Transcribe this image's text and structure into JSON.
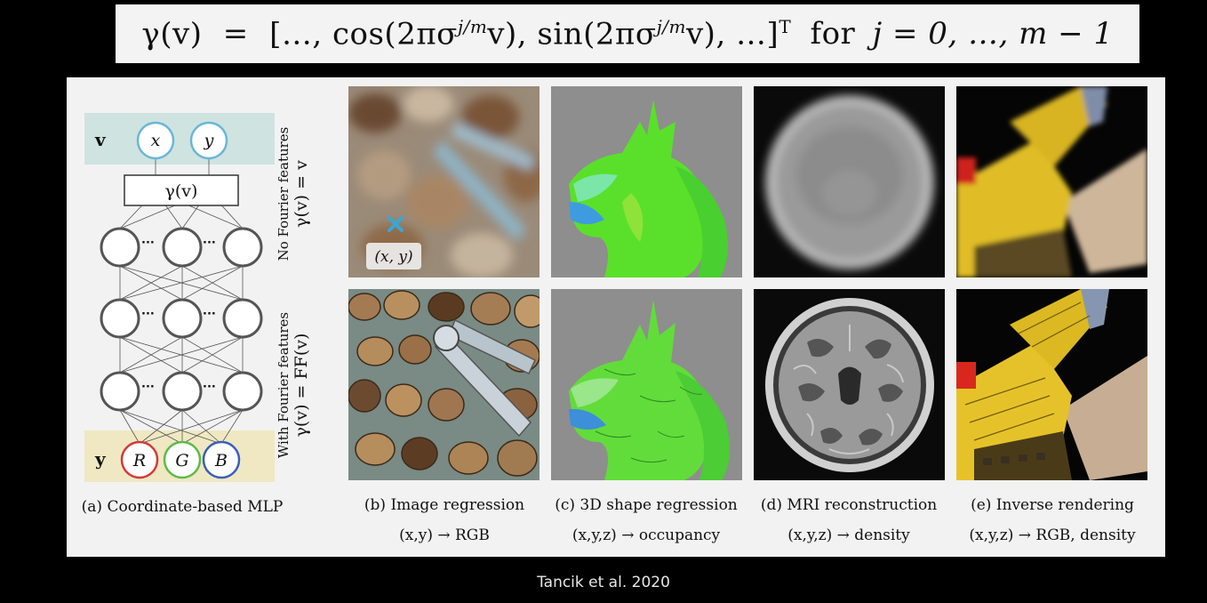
{
  "formula": {
    "gamma_v": "γ(v)",
    "equals": "=",
    "body": "[…, cos(2πσ^{j/m}v), sin(2πσ^{j/m}v), …]",
    "left_part": "[…, cos(2πσ",
    "exp1": "j/m",
    "mid_part": "v), sin(2πσ",
    "exp2": "j/m",
    "right_part": "v), …]",
    "transpose": "T",
    "for_text": "for",
    "range": "j = 0, …, m − 1"
  },
  "mlp": {
    "input_label": "v",
    "input_x": "x",
    "input_y": "y",
    "encoding_box": "γ(v)",
    "output_label": "y",
    "output_r": "R",
    "output_g": "G",
    "output_b": "B",
    "ellipsis": "···"
  },
  "row_labels": {
    "top_line1": "No Fourier features",
    "top_line2": "γ(v) = v",
    "bottom_line1": "With Fourier features",
    "bottom_line2": "γ(v) = FF(v)"
  },
  "coord_marker": "(x, y)",
  "captions": {
    "a": "(a) Coordinate-based MLP",
    "b_title": "(b) Image regression",
    "b_sub": "(x,y) → RGB",
    "c_title": "(c) 3D shape regression",
    "c_sub": "(x,y,z) → occupancy",
    "d_title": "(d) MRI reconstruction",
    "d_sub": "(x,y,z) → density",
    "e_title": "(e) Inverse rendering",
    "e_sub": "(x,y,z) → RGB, density"
  },
  "credit": "Tancik et al. 2020",
  "colors": {
    "input_band": "#cfe3e0",
    "output_band": "#efe8c2",
    "input_circle": "#6ab7d6",
    "r_circle": "#d43a3a",
    "g_circle": "#5dbb4a",
    "b_circle": "#3a5fb8",
    "marker": "#3aa6d6"
  }
}
